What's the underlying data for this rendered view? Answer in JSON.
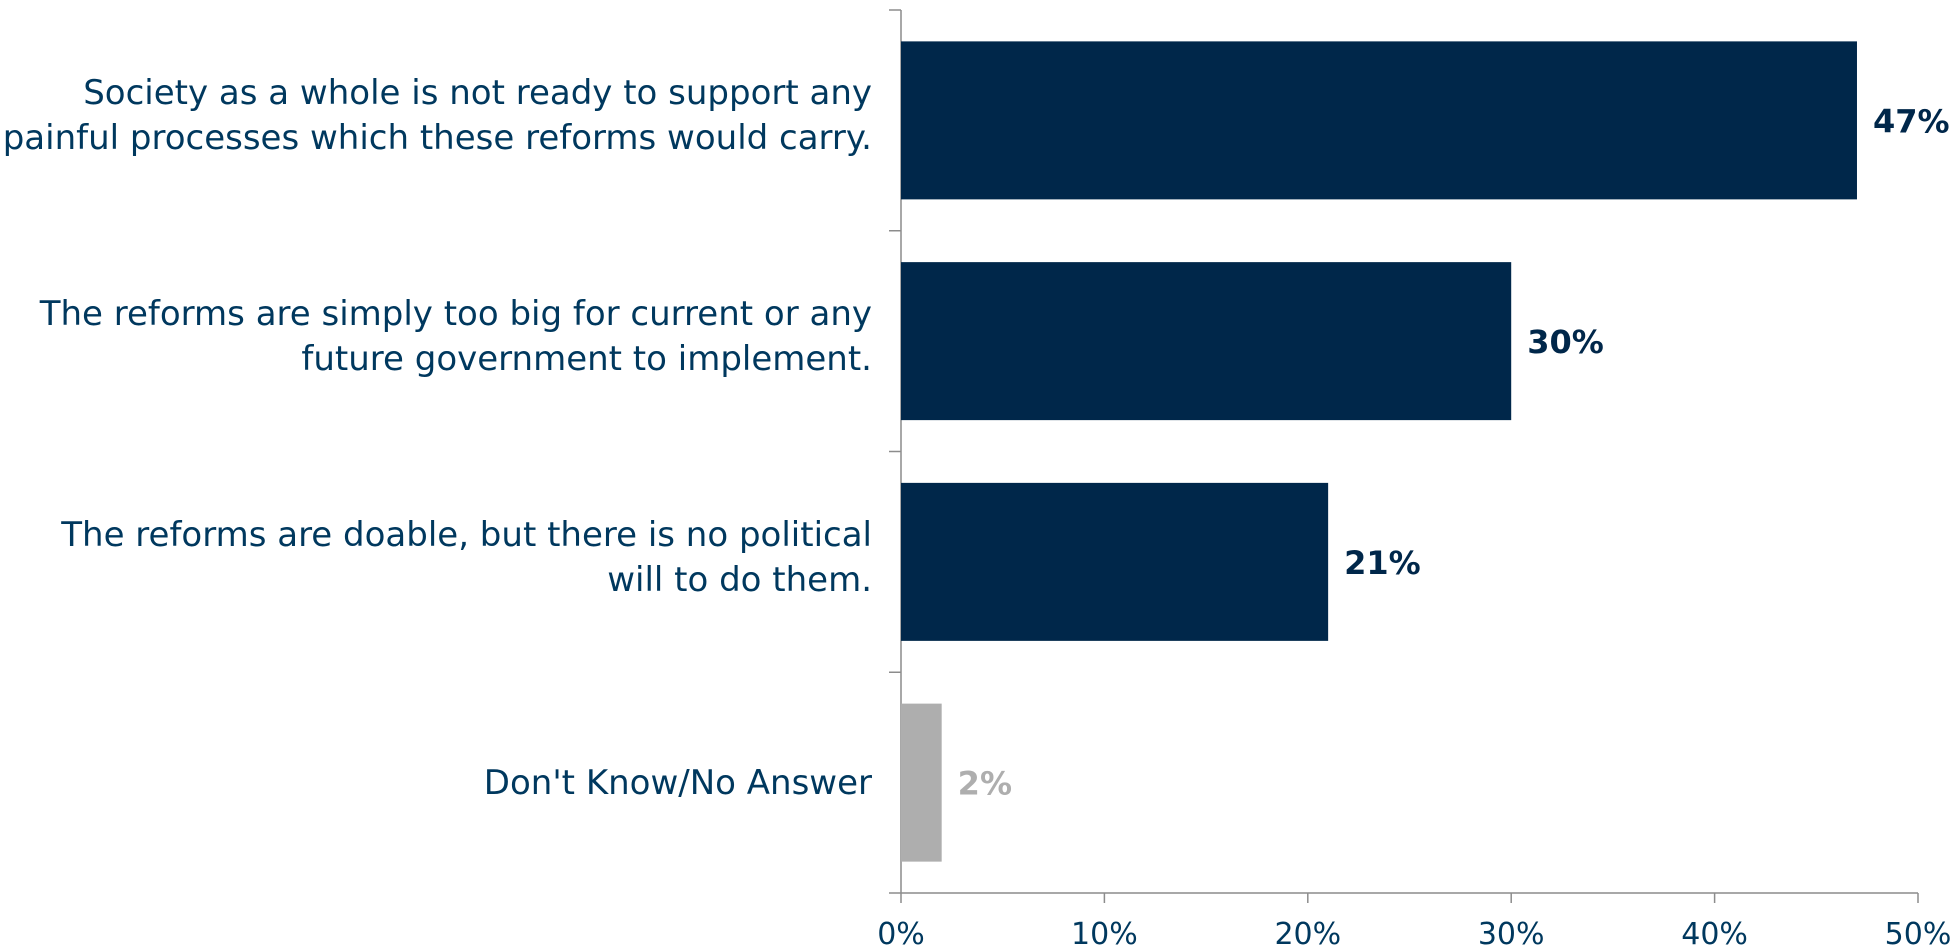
{
  "chart_data": {
    "type": "bar",
    "orientation": "horizontal",
    "categories": [
      [
        "Society as a whole is not ready to support any",
        "painful processes which these reforms would carry."
      ],
      [
        "The reforms are simply too big for current or any",
        "future government to implement."
      ],
      [
        "The reforms are doable, but there is no political",
        "will to do them."
      ],
      [
        "Don't Know/No Answer"
      ]
    ],
    "values": [
      47,
      30,
      21,
      2
    ],
    "value_labels": [
      "47%",
      "30%",
      "21%",
      "2%"
    ],
    "bar_colors": [
      "#00274a",
      "#00274a",
      "#00274a",
      "#aeaeae"
    ],
    "label_colors": [
      "#00274a",
      "#00274a",
      "#00274a",
      "#aeaeae"
    ],
    "xlim": [
      0,
      50
    ],
    "x_ticks": [
      0,
      10,
      20,
      30,
      40,
      50
    ],
    "x_tick_labels": [
      "0%",
      "10%",
      "20%",
      "30%",
      "40%",
      "50%"
    ],
    "title": "",
    "xlabel": "",
    "ylabel": "",
    "grid": false,
    "legend": "none"
  }
}
